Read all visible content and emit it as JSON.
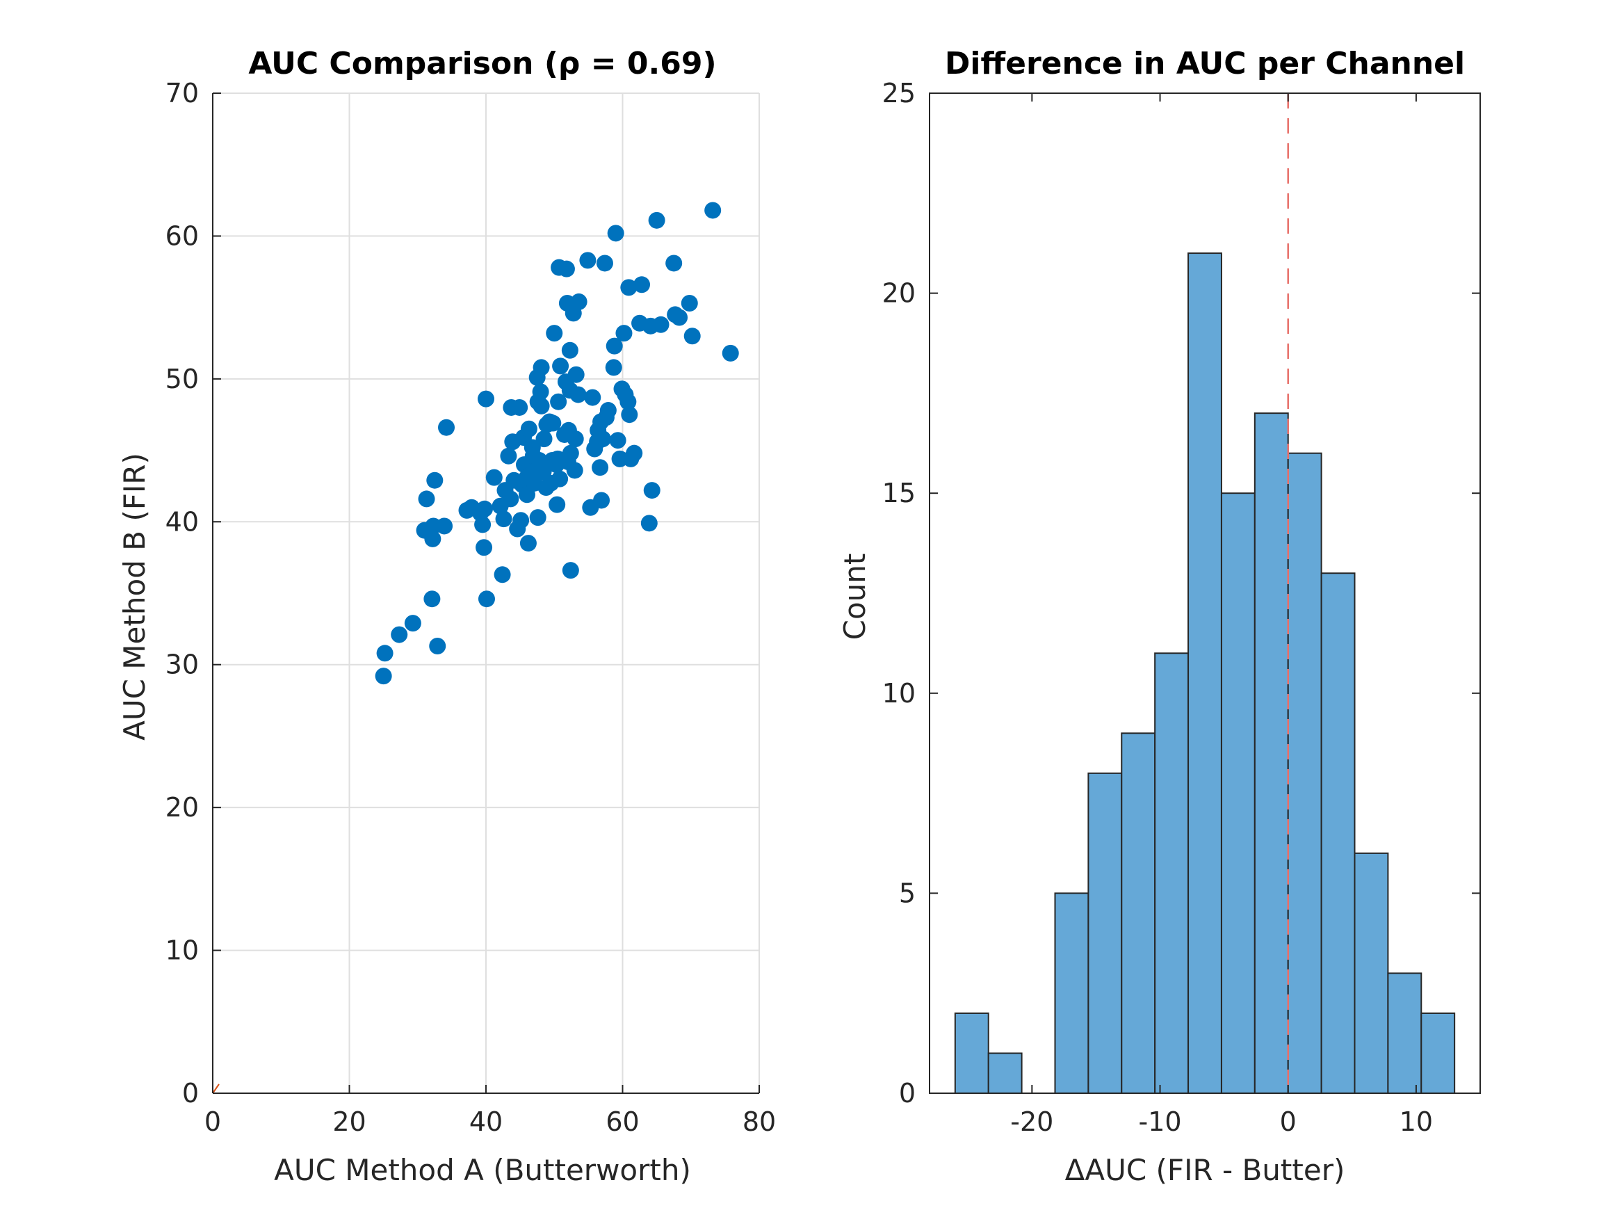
{
  "chart_data": [
    {
      "type": "scatter",
      "title": "AUC Comparison (ρ = 0.69)",
      "xlabel": "AUC Method A (Butterworth)",
      "ylabel": "AUC Method B (FIR)",
      "xlim": [
        0,
        80
      ],
      "ylim": [
        0,
        70
      ],
      "xticks": [
        0,
        20,
        40,
        60,
        80
      ],
      "yticks": [
        0,
        10,
        20,
        30,
        40,
        50,
        60,
        70
      ],
      "grid": true,
      "marker_color": "#0072BD",
      "identity_line_color": "#D95319",
      "points": [
        [
          25.0,
          29.2
        ],
        [
          25.2,
          30.8
        ],
        [
          27.3,
          32.1
        ],
        [
          29.3,
          32.9
        ],
        [
          31.0,
          39.4
        ],
        [
          31.3,
          41.6
        ],
        [
          32.2,
          38.8
        ],
        [
          32.3,
          39.7
        ],
        [
          32.1,
          34.6
        ],
        [
          32.5,
          42.9
        ],
        [
          32.9,
          31.3
        ],
        [
          33.9,
          39.7
        ],
        [
          34.2,
          46.6
        ],
        [
          37.2,
          40.8
        ],
        [
          37.9,
          41.0
        ],
        [
          39.2,
          40.6
        ],
        [
          39.5,
          39.8
        ],
        [
          39.8,
          40.9
        ],
        [
          39.7,
          38.2
        ],
        [
          40.0,
          48.6
        ],
        [
          40.1,
          34.6
        ],
        [
          41.2,
          43.1
        ],
        [
          42.1,
          41.1
        ],
        [
          42.4,
          36.3
        ],
        [
          42.6,
          40.2
        ],
        [
          42.8,
          42.2
        ],
        [
          43.3,
          44.6
        ],
        [
          43.6,
          41.6
        ],
        [
          43.7,
          48.0
        ],
        [
          43.9,
          45.6
        ],
        [
          44.1,
          42.9
        ],
        [
          44.6,
          39.5
        ],
        [
          44.9,
          48.0
        ],
        [
          45.1,
          40.1
        ],
        [
          45.3,
          42.6
        ],
        [
          45.5,
          45.9
        ],
        [
          45.6,
          44.0
        ],
        [
          46.0,
          43.1
        ],
        [
          46.0,
          41.9
        ],
        [
          46.2,
          38.5
        ],
        [
          46.3,
          46.5
        ],
        [
          46.4,
          44.1
        ],
        [
          46.6,
          43.3
        ],
        [
          46.8,
          45.2
        ],
        [
          46.9,
          44.6
        ],
        [
          47.1,
          42.7
        ],
        [
          47.3,
          43.6
        ],
        [
          47.6,
          40.3
        ],
        [
          47.5,
          50.1
        ],
        [
          47.6,
          48.4
        ],
        [
          47.8,
          44.3
        ],
        [
          48.0,
          49.1
        ],
        [
          48.1,
          48.1
        ],
        [
          48.1,
          50.8
        ],
        [
          48.4,
          43.5
        ],
        [
          48.5,
          45.8
        ],
        [
          48.8,
          42.4
        ],
        [
          48.9,
          46.8
        ],
        [
          49.3,
          47.0
        ],
        [
          49.5,
          42.7
        ],
        [
          49.7,
          44.3
        ],
        [
          49.8,
          46.9
        ],
        [
          50.0,
          53.2
        ],
        [
          50.3,
          44.0
        ],
        [
          50.4,
          41.2
        ],
        [
          50.5,
          44.4
        ],
        [
          50.6,
          48.4
        ],
        [
          50.7,
          57.8
        ],
        [
          50.8,
          43.0
        ],
        [
          50.9,
          50.9
        ],
        [
          51.5,
          46.1
        ],
        [
          51.7,
          49.8
        ],
        [
          51.8,
          57.7
        ],
        [
          51.9,
          55.3
        ],
        [
          52.0,
          44.2
        ],
        [
          52.1,
          46.4
        ],
        [
          52.3,
          52.0
        ],
        [
          52.3,
          49.2
        ],
        [
          52.4,
          36.6
        ],
        [
          52.4,
          44.8
        ],
        [
          52.8,
          54.6
        ],
        [
          53.0,
          43.6
        ],
        [
          53.1,
          45.8
        ],
        [
          53.5,
          48.9
        ],
        [
          53.6,
          55.4
        ],
        [
          53.2,
          50.3
        ],
        [
          54.9,
          58.3
        ],
        [
          55.3,
          41.0
        ],
        [
          55.6,
          48.7
        ],
        [
          55.9,
          45.1
        ],
        [
          56.3,
          45.6
        ],
        [
          56.4,
          46.4
        ],
        [
          56.7,
          43.8
        ],
        [
          56.8,
          47.0
        ],
        [
          56.9,
          41.5
        ],
        [
          57.1,
          45.8
        ],
        [
          57.4,
          58.1
        ],
        [
          57.6,
          47.3
        ],
        [
          57.9,
          47.8
        ],
        [
          58.7,
          50.8
        ],
        [
          58.8,
          52.3
        ],
        [
          59.0,
          60.2
        ],
        [
          59.3,
          45.7
        ],
        [
          59.6,
          44.4
        ],
        [
          59.9,
          49.3
        ],
        [
          60.2,
          53.2
        ],
        [
          60.4,
          48.9
        ],
        [
          60.8,
          48.4
        ],
        [
          60.9,
          56.4
        ],
        [
          61.0,
          47.5
        ],
        [
          61.2,
          44.4
        ],
        [
          61.7,
          44.8
        ],
        [
          62.5,
          53.9
        ],
        [
          62.8,
          56.6
        ],
        [
          63.9,
          39.9
        ],
        [
          64.1,
          53.7
        ],
        [
          64.3,
          42.2
        ],
        [
          65.0,
          61.1
        ],
        [
          65.6,
          53.8
        ],
        [
          67.5,
          58.1
        ],
        [
          67.7,
          54.5
        ],
        [
          68.3,
          54.3
        ],
        [
          69.8,
          55.3
        ],
        [
          70.2,
          53.0
        ],
        [
          73.2,
          61.8
        ],
        [
          75.8,
          51.8
        ]
      ]
    },
    {
      "type": "bar",
      "subtype": "histogram",
      "title": "Difference in AUC per Channel",
      "xlabel": "ΔAUC (FIR - Butter)",
      "ylabel": "Count",
      "xlim": [
        -28,
        15
      ],
      "ylim": [
        0,
        25
      ],
      "xticks": [
        -20,
        -10,
        0,
        10
      ],
      "xtick_labels": [
        "-20",
        "-10",
        "0",
        "10"
      ],
      "yticks": [
        0,
        5,
        10,
        15,
        20,
        25
      ],
      "grid": false,
      "bar_color": "#65A8D7",
      "edge_color": "#262626",
      "reference_line": {
        "x": 0,
        "style": "dashed",
        "color": "#E8706B"
      },
      "bin_edges": [
        -26.0,
        -23.4,
        -20.8,
        -18.2,
        -15.6,
        -13.0,
        -10.4,
        -7.8,
        -5.2,
        -2.6,
        0.0,
        2.6,
        5.2,
        7.8,
        10.4,
        13.0
      ],
      "counts": [
        2,
        1,
        0,
        5,
        8,
        9,
        11,
        21,
        15,
        17,
        16,
        13,
        6,
        3,
        2
      ]
    }
  ]
}
